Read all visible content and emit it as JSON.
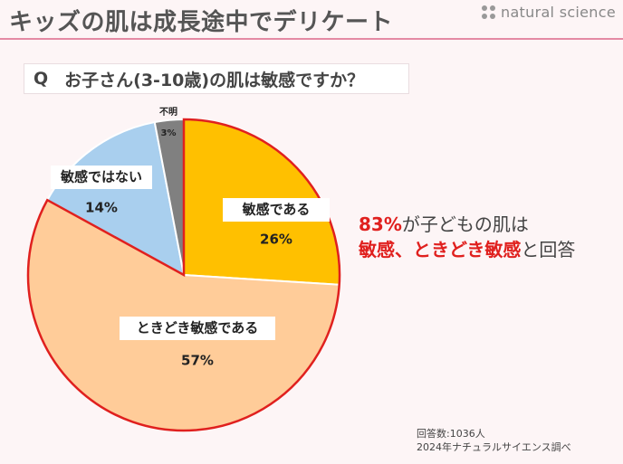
{
  "header": {
    "title": "キッズの肌は成長途中でデリケート",
    "brand": "natural science"
  },
  "question": {
    "mark": "Q",
    "text": "お子さん(3-10歳)の肌は敏感ですか？"
  },
  "chart_data": {
    "type": "pie",
    "start": "12 o'clock",
    "direction": "clockwise",
    "slices": [
      {
        "label": "敏感である",
        "value": 26,
        "value_label": "26%",
        "color": "#ffc000",
        "highlighted": true
      },
      {
        "label": "ときどき敏感である",
        "value": 57,
        "value_label": "57%",
        "color": "#ffcc99",
        "highlighted": true
      },
      {
        "label": "敏感ではない",
        "value": 14,
        "value_label": "14%",
        "color": "#a9cfee",
        "highlighted": false
      },
      {
        "label": "不明",
        "value": 3,
        "value_label": "3%",
        "color": "#808080",
        "highlighted": false
      }
    ],
    "highlight_color": "#e0201e"
  },
  "callout": {
    "line1_accent": "83%",
    "line1_rest": "が子どもの肌は",
    "line2_accent": "敏感、ときどき敏感",
    "line2_rest": "と回答"
  },
  "footnote": {
    "line1": "回答数:1036人",
    "line2": "2024年ナチュラルサイエンス調べ"
  }
}
